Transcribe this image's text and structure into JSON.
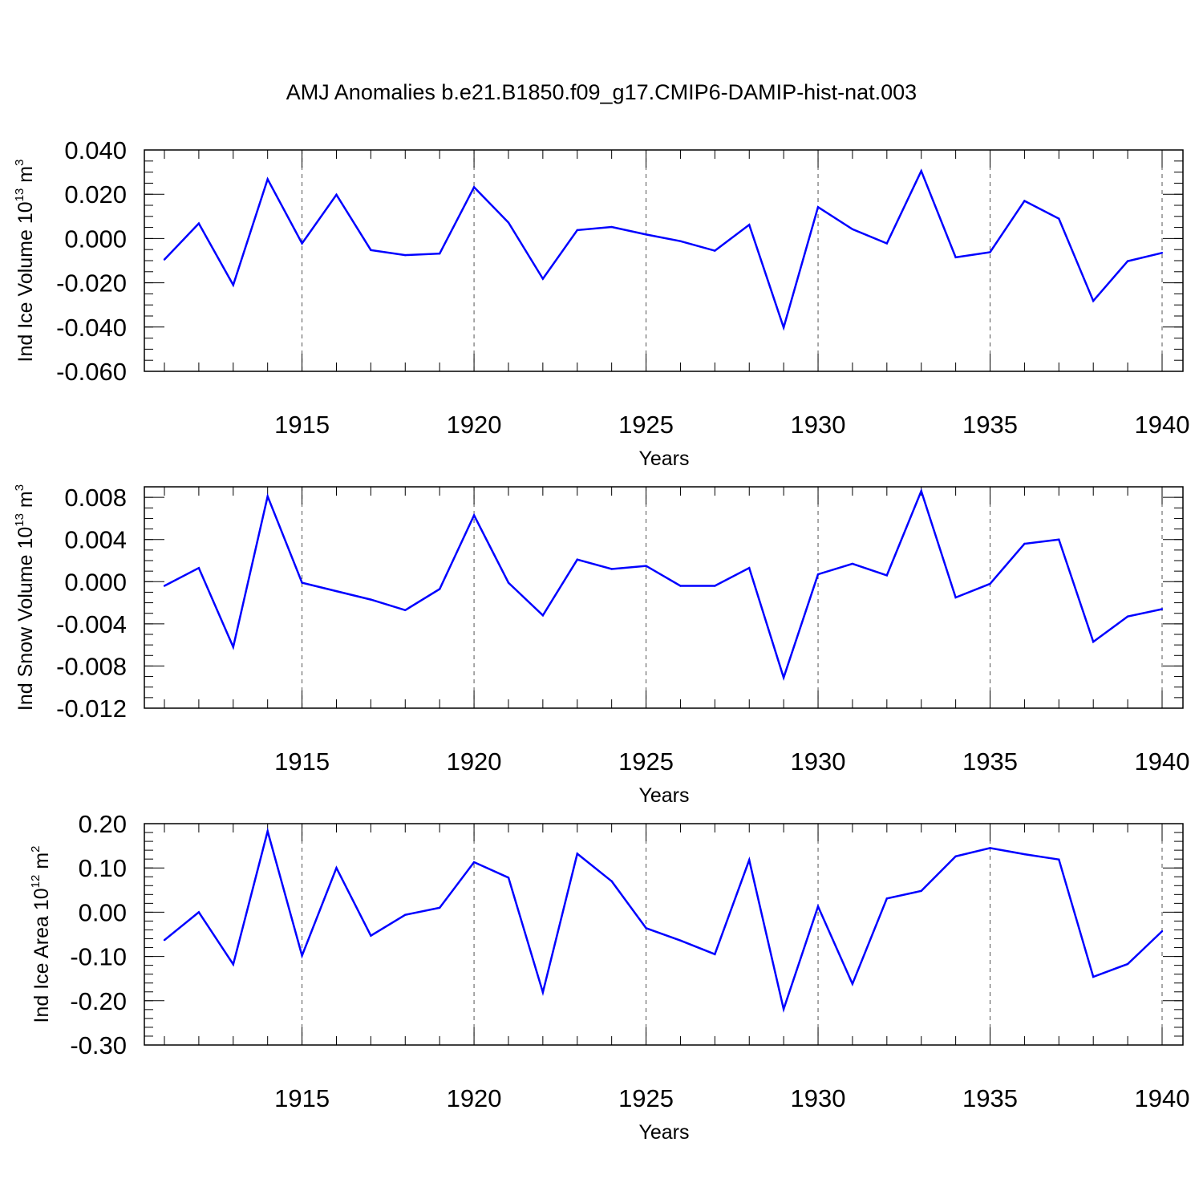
{
  "title": "AMJ Anomalies b.e21.B1850.f09_g17.CMIP6-DAMIP-hist-nat.003",
  "colors": {
    "line": "#0000ff",
    "axis": "#000000",
    "grid": "#555555",
    "background": "#ffffff"
  },
  "chart_data": [
    {
      "type": "line",
      "ylabel": {
        "text": "Ind Ice Volume 10",
        "sup": "13",
        "unit": " m",
        "unit_sup": "3"
      },
      "xlabel": "Years",
      "xlim": [
        1911,
        1940
      ],
      "ylim": [
        -0.06,
        0.04
      ],
      "x_ticks": [
        1915,
        1920,
        1925,
        1930,
        1935,
        1940
      ],
      "y_ticks": [
        -0.06,
        -0.04,
        -0.02,
        0.0,
        0.02,
        0.04
      ],
      "y_tick_labels": [
        "-0.060",
        "-0.040",
        "-0.020",
        "0.000",
        "0.020",
        "0.040"
      ],
      "y_minor_step": 0.005,
      "grid": "vertical dashed at major x ticks",
      "x": [
        1911,
        1912,
        1913,
        1914,
        1915,
        1916,
        1917,
        1918,
        1919,
        1920,
        1921,
        1922,
        1923,
        1924,
        1925,
        1926,
        1927,
        1928,
        1929,
        1930,
        1931,
        1932,
        1933,
        1934,
        1935,
        1936,
        1937,
        1938,
        1939,
        1940
      ],
      "y": [
        -0.0095,
        0.0068,
        -0.021,
        0.0268,
        -0.0022,
        0.0198,
        -0.0052,
        -0.0075,
        -0.0068,
        0.0232,
        0.0072,
        -0.0182,
        0.0038,
        0.0052,
        0.0018,
        -0.0012,
        -0.0055,
        0.0062,
        -0.0402,
        0.0142,
        0.0042,
        -0.0022,
        0.0305,
        -0.0085,
        -0.0062,
        0.017,
        0.009,
        -0.0282,
        -0.0102,
        -0.0065
      ]
    },
    {
      "type": "line",
      "ylabel": {
        "text": "Ind Snow Volume 10",
        "sup": "13",
        "unit": " m",
        "unit_sup": "3"
      },
      "xlabel": "Years",
      "xlim": [
        1911,
        1940
      ],
      "ylim": [
        -0.012,
        0.009
      ],
      "x_ticks": [
        1915,
        1920,
        1925,
        1930,
        1935,
        1940
      ],
      "y_ticks": [
        -0.012,
        -0.008,
        -0.004,
        0.0,
        0.004,
        0.008
      ],
      "y_tick_labels": [
        "-0.012",
        "-0.008",
        "-0.004",
        "0.000",
        "0.004",
        "0.008"
      ],
      "y_minor_step": 0.001,
      "grid": "vertical dashed at major x ticks",
      "x": [
        1911,
        1912,
        1913,
        1914,
        1915,
        1916,
        1917,
        1918,
        1919,
        1920,
        1921,
        1922,
        1923,
        1924,
        1925,
        1926,
        1927,
        1928,
        1929,
        1930,
        1931,
        1932,
        1933,
        1934,
        1935,
        1936,
        1937,
        1938,
        1939,
        1940
      ],
      "y": [
        -0.0004,
        0.0013,
        -0.0062,
        0.0081,
        -0.0001,
        -0.0009,
        -0.0017,
        -0.0027,
        -0.0007,
        0.0063,
        -0.0001,
        -0.0032,
        0.0021,
        0.0012,
        0.0015,
        -0.0004,
        -0.0004,
        0.0013,
        -0.0091,
        0.0007,
        0.0017,
        0.0006,
        0.0086,
        -0.0015,
        -0.0002,
        0.0036,
        0.004,
        -0.0057,
        -0.0033,
        -0.0026
      ]
    },
    {
      "type": "line",
      "ylabel": {
        "text": "Ind Ice Area 10",
        "sup": "12",
        "unit": " m",
        "unit_sup": "2"
      },
      "xlabel": "Years",
      "xlim": [
        1911,
        1940
      ],
      "ylim": [
        -0.3,
        0.2
      ],
      "x_ticks": [
        1915,
        1920,
        1925,
        1930,
        1935,
        1940
      ],
      "y_ticks": [
        -0.3,
        -0.2,
        -0.1,
        0.0,
        0.1,
        0.2
      ],
      "y_tick_labels": [
        "-0.30",
        "-0.20",
        "-0.10",
        "0.00",
        "0.10",
        "0.20"
      ],
      "y_minor_step": 0.02,
      "grid": "vertical dashed at major x ticks",
      "x": [
        1911,
        1912,
        1913,
        1914,
        1915,
        1916,
        1917,
        1918,
        1919,
        1920,
        1921,
        1922,
        1923,
        1924,
        1925,
        1926,
        1927,
        1928,
        1929,
        1930,
        1931,
        1932,
        1933,
        1934,
        1935,
        1936,
        1937,
        1938,
        1939,
        1940
      ],
      "y": [
        -0.063,
        0.0,
        -0.118,
        0.183,
        -0.098,
        0.1,
        -0.053,
        -0.006,
        0.01,
        0.113,
        0.078,
        -0.181,
        0.132,
        0.07,
        -0.036,
        -0.064,
        -0.095,
        0.118,
        -0.219,
        0.013,
        -0.162,
        0.031,
        0.048,
        0.126,
        0.145,
        0.131,
        0.119,
        -0.146,
        -0.117,
        -0.043
      ]
    }
  ]
}
